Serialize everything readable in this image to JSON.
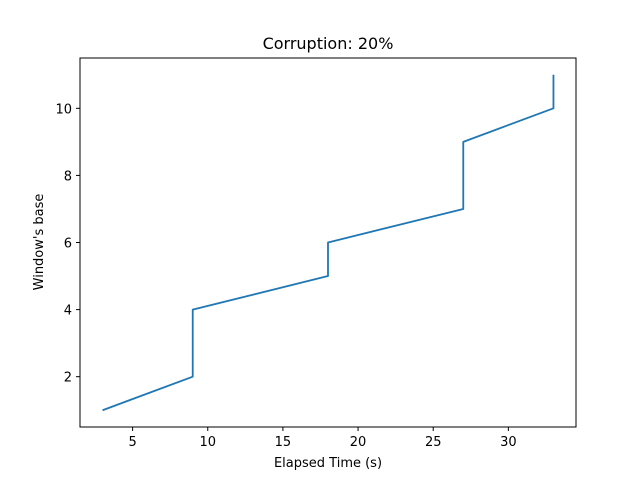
{
  "chart_data": {
    "type": "line",
    "title": "Corruption: 20%",
    "xlabel": "Elapsed Time (s)",
    "ylabel": "Window's base",
    "xlim": [
      1.5,
      34.5
    ],
    "ylim": [
      0.5,
      11.5
    ],
    "xticks": [
      5,
      10,
      15,
      20,
      25,
      30
    ],
    "yticks": [
      2,
      4,
      6,
      8,
      10
    ],
    "grid": false,
    "series": [
      {
        "color": "#1f77b4",
        "x": [
          3,
          9,
          9,
          18,
          18,
          27,
          27,
          33,
          33
        ],
        "y": [
          1,
          2,
          4,
          5,
          6,
          7,
          9,
          10,
          11
        ]
      }
    ]
  }
}
